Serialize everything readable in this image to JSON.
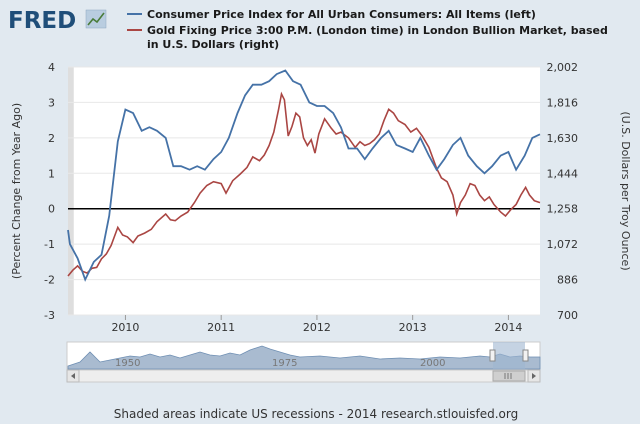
{
  "logo": {
    "text": "FRED"
  },
  "chart_data": {
    "type": "line",
    "legend": [
      {
        "name": "Consumer Price Index for All Urban Consumers: All Items (left)",
        "color": "#4572a7"
      },
      {
        "name": "Gold Fixing Price 3:00 P.M. (London time) in London Bullion Market, based",
        "name_line2": "in U.S. Dollars (right)",
        "color": "#aa4643"
      }
    ],
    "ylabel_left": "(Percent Change from Year Ago)",
    "ylabel_right": "(U.S. Dollars per Troy Ounce)",
    "y_left": {
      "min": -3,
      "max": 4,
      "ticks": [
        "4",
        "3",
        "2",
        "1",
        "0",
        "-1",
        "-2",
        "-3"
      ]
    },
    "y_right": {
      "min": 700,
      "max": 2002,
      "ticks": [
        "2,002",
        "1,816",
        "1,630",
        "1,444",
        "1,258",
        "1,072",
        "886",
        "700"
      ]
    },
    "x": {
      "min": 2009.4,
      "max": 2014.33,
      "tick_values": [
        2010,
        2011,
        2012,
        2013,
        2014
      ],
      "tick_labels": [
        "2010",
        "2011",
        "2012",
        "2013",
        "2014"
      ]
    },
    "recession": {
      "start": 2009.4,
      "end": 2009.46
    },
    "zero_line": 0,
    "series": [
      {
        "name": "Consumer Price Index for All Urban Consumers: All Items (left)",
        "axis": "left",
        "color": "#4572a7",
        "points": [
          [
            2009.4,
            -0.6
          ],
          [
            2009.42,
            -1.0
          ],
          [
            2009.5,
            -1.4
          ],
          [
            2009.58,
            -2.0
          ],
          [
            2009.67,
            -1.5
          ],
          [
            2009.75,
            -1.3
          ],
          [
            2009.83,
            -0.2
          ],
          [
            2009.92,
            1.9
          ],
          [
            2010.0,
            2.8
          ],
          [
            2010.08,
            2.7
          ],
          [
            2010.17,
            2.2
          ],
          [
            2010.25,
            2.3
          ],
          [
            2010.33,
            2.2
          ],
          [
            2010.42,
            2.0
          ],
          [
            2010.5,
            1.2
          ],
          [
            2010.58,
            1.2
          ],
          [
            2010.67,
            1.1
          ],
          [
            2010.75,
            1.2
          ],
          [
            2010.83,
            1.1
          ],
          [
            2010.92,
            1.4
          ],
          [
            2011.0,
            1.6
          ],
          [
            2011.08,
            2.0
          ],
          [
            2011.17,
            2.7
          ],
          [
            2011.25,
            3.2
          ],
          [
            2011.33,
            3.5
          ],
          [
            2011.42,
            3.5
          ],
          [
            2011.5,
            3.6
          ],
          [
            2011.58,
            3.8
          ],
          [
            2011.67,
            3.9
          ],
          [
            2011.75,
            3.6
          ],
          [
            2011.83,
            3.5
          ],
          [
            2011.92,
            3.0
          ],
          [
            2012.0,
            2.9
          ],
          [
            2012.08,
            2.9
          ],
          [
            2012.17,
            2.7
          ],
          [
            2012.25,
            2.3
          ],
          [
            2012.33,
            1.7
          ],
          [
            2012.42,
            1.7
          ],
          [
            2012.5,
            1.4
          ],
          [
            2012.58,
            1.7
          ],
          [
            2012.67,
            2.0
          ],
          [
            2012.75,
            2.2
          ],
          [
            2012.83,
            1.8
          ],
          [
            2012.92,
            1.7
          ],
          [
            2013.0,
            1.6
          ],
          [
            2013.08,
            2.0
          ],
          [
            2013.17,
            1.5
          ],
          [
            2013.25,
            1.1
          ],
          [
            2013.33,
            1.4
          ],
          [
            2013.42,
            1.8
          ],
          [
            2013.5,
            2.0
          ],
          [
            2013.58,
            1.5
          ],
          [
            2013.67,
            1.2
          ],
          [
            2013.75,
            1.0
          ],
          [
            2013.83,
            1.2
          ],
          [
            2013.92,
            1.5
          ],
          [
            2014.0,
            1.6
          ],
          [
            2014.08,
            1.1
          ],
          [
            2014.17,
            1.5
          ],
          [
            2014.25,
            2.0
          ],
          [
            2014.33,
            2.1
          ]
        ]
      },
      {
        "name": "Gold Fixing Price 3:00 P.M. (London time) in London Bullion Market, based in U.S. Dollars (right)",
        "axis": "right",
        "color": "#aa4643",
        "points": [
          [
            2009.4,
            905
          ],
          [
            2009.45,
            935
          ],
          [
            2009.5,
            958
          ],
          [
            2009.55,
            930
          ],
          [
            2009.6,
            920
          ],
          [
            2009.65,
            945
          ],
          [
            2009.7,
            950
          ],
          [
            2009.75,
            995
          ],
          [
            2009.8,
            1020
          ],
          [
            2009.85,
            1065
          ],
          [
            2009.92,
            1160
          ],
          [
            2009.97,
            1120
          ],
          [
            2010.02,
            1110
          ],
          [
            2010.08,
            1080
          ],
          [
            2010.13,
            1115
          ],
          [
            2010.2,
            1130
          ],
          [
            2010.27,
            1150
          ],
          [
            2010.33,
            1190
          ],
          [
            2010.42,
            1230
          ],
          [
            2010.47,
            1200
          ],
          [
            2010.52,
            1195
          ],
          [
            2010.58,
            1220
          ],
          [
            2010.65,
            1240
          ],
          [
            2010.72,
            1290
          ],
          [
            2010.78,
            1340
          ],
          [
            2010.85,
            1380
          ],
          [
            2010.92,
            1400
          ],
          [
            2011.0,
            1390
          ],
          [
            2011.05,
            1340
          ],
          [
            2011.12,
            1405
          ],
          [
            2011.2,
            1440
          ],
          [
            2011.27,
            1475
          ],
          [
            2011.33,
            1530
          ],
          [
            2011.4,
            1510
          ],
          [
            2011.45,
            1540
          ],
          [
            2011.5,
            1590
          ],
          [
            2011.55,
            1660
          ],
          [
            2011.6,
            1780
          ],
          [
            2011.63,
            1860
          ],
          [
            2011.66,
            1830
          ],
          [
            2011.7,
            1640
          ],
          [
            2011.74,
            1690
          ],
          [
            2011.78,
            1760
          ],
          [
            2011.82,
            1740
          ],
          [
            2011.86,
            1630
          ],
          [
            2011.9,
            1590
          ],
          [
            2011.94,
            1620
          ],
          [
            2011.98,
            1550
          ],
          [
            2012.02,
            1650
          ],
          [
            2012.08,
            1730
          ],
          [
            2012.15,
            1680
          ],
          [
            2012.2,
            1650
          ],
          [
            2012.25,
            1660
          ],
          [
            2012.33,
            1630
          ],
          [
            2012.4,
            1580
          ],
          [
            2012.45,
            1610
          ],
          [
            2012.5,
            1590
          ],
          [
            2012.55,
            1600
          ],
          [
            2012.6,
            1620
          ],
          [
            2012.65,
            1650
          ],
          [
            2012.7,
            1720
          ],
          [
            2012.75,
            1780
          ],
          [
            2012.8,
            1760
          ],
          [
            2012.85,
            1720
          ],
          [
            2012.92,
            1700
          ],
          [
            2012.98,
            1660
          ],
          [
            2013.04,
            1680
          ],
          [
            2013.1,
            1640
          ],
          [
            2013.17,
            1580
          ],
          [
            2013.25,
            1470
          ],
          [
            2013.3,
            1420
          ],
          [
            2013.36,
            1400
          ],
          [
            2013.42,
            1330
          ],
          [
            2013.46,
            1230
          ],
          [
            2013.5,
            1290
          ],
          [
            2013.55,
            1330
          ],
          [
            2013.6,
            1390
          ],
          [
            2013.65,
            1380
          ],
          [
            2013.7,
            1330
          ],
          [
            2013.75,
            1300
          ],
          [
            2013.8,
            1320
          ],
          [
            2013.85,
            1280
          ],
          [
            2013.92,
            1240
          ],
          [
            2013.97,
            1220
          ],
          [
            2014.02,
            1250
          ],
          [
            2014.08,
            1280
          ],
          [
            2014.13,
            1330
          ],
          [
            2014.18,
            1370
          ],
          [
            2014.22,
            1330
          ],
          [
            2014.27,
            1300
          ],
          [
            2014.33,
            1290
          ]
        ]
      }
    ]
  },
  "navigator": {
    "year_labels": [
      "1950",
      "1975",
      "2000"
    ]
  },
  "footer": {
    "text": "Shaded areas indicate US recessions - 2014 research.stlouisfed.org"
  }
}
